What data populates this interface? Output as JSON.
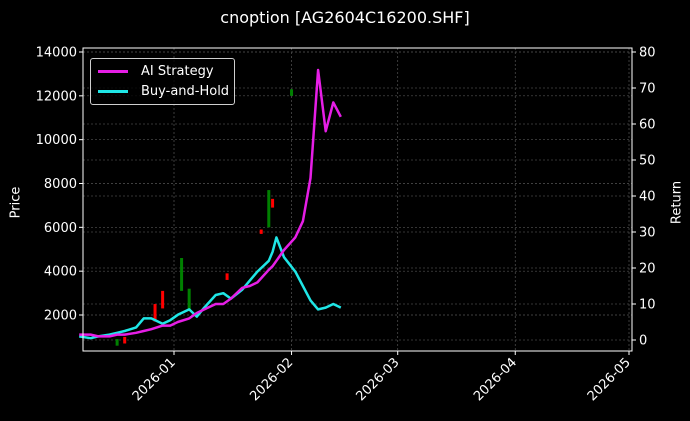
{
  "chart_data": {
    "type": "line",
    "title": "cnoption [AG2604C16200.SHF]",
    "xlabel": "",
    "ylabel_left": "Price",
    "ylabel_right": "Return",
    "x_ticks": [
      "2026-01",
      "2026-02",
      "2026-03",
      "2026-04",
      "2026-05"
    ],
    "y_left_ticks": [
      2000,
      4000,
      6000,
      8000,
      10000,
      12000,
      14000
    ],
    "y_right_ticks": [
      0,
      10,
      20,
      30,
      40,
      50,
      60,
      70,
      80
    ],
    "y_left_range": [
      350,
      14000
    ],
    "y_right_range": [
      -2,
      80
    ],
    "grid": true,
    "legend_position": "upper left",
    "legend": [
      "AI Strategy",
      "Buy-and-Hold"
    ],
    "colors": {
      "ai_strategy": "#ff00ff",
      "buy_and_hold": "#00ffff",
      "candle_up": "#008000",
      "candle_down": "#ff0000",
      "background": "#000000"
    },
    "series": [
      {
        "name": "AI Strategy",
        "axis": "right",
        "x": [
          "2025-12-07",
          "2025-12-10",
          "2025-12-12",
          "2025-12-15",
          "2025-12-17",
          "2025-12-19",
          "2025-12-22",
          "2025-12-24",
          "2025-12-26",
          "2025-12-29",
          "2025-12-31",
          "2026-01-02",
          "2026-01-05",
          "2026-01-07",
          "2026-01-09",
          "2026-01-12",
          "2026-01-14",
          "2026-01-16",
          "2026-01-19",
          "2026-01-21",
          "2026-01-23",
          "2026-01-26",
          "2026-01-27",
          "2026-01-28",
          "2026-01-30",
          "2026-02-02",
          "2026-02-04",
          "2026-02-06",
          "2026-02-08",
          "2026-02-10",
          "2026-02-12",
          "2026-02-14"
        ],
        "values": [
          1.5,
          1.5,
          1.0,
          1.0,
          1.5,
          1.5,
          2.0,
          2.5,
          3.0,
          4.0,
          4.0,
          5.0,
          6.0,
          7.5,
          8.5,
          10.0,
          10.0,
          11.5,
          14.5,
          15.0,
          16.0,
          19.5,
          20.5,
          22.0,
          25.0,
          28.5,
          33.0,
          45.0,
          75.0,
          58.0,
          66.0,
          62.0
        ]
      },
      {
        "name": "Buy-and-Hold",
        "axis": "right",
        "x": [
          "2025-12-07",
          "2025-12-10",
          "2025-12-12",
          "2025-12-15",
          "2025-12-17",
          "2025-12-19",
          "2025-12-22",
          "2025-12-24",
          "2025-12-26",
          "2025-12-29",
          "2025-12-31",
          "2026-01-02",
          "2026-01-05",
          "2026-01-07",
          "2026-01-09",
          "2026-01-12",
          "2026-01-14",
          "2026-01-16",
          "2026-01-19",
          "2026-01-21",
          "2026-01-23",
          "2026-01-26",
          "2026-01-27",
          "2026-01-28",
          "2026-01-30",
          "2026-02-02",
          "2026-02-04",
          "2026-02-06",
          "2026-02-08",
          "2026-02-10",
          "2026-02-12",
          "2026-02-14"
        ],
        "values": [
          1.0,
          0.5,
          1.0,
          1.5,
          2.0,
          2.5,
          3.5,
          6.0,
          6.0,
          4.5,
          5.5,
          7.0,
          8.5,
          6.5,
          9.0,
          12.5,
          13.0,
          11.5,
          14.0,
          16.5,
          19.0,
          22.0,
          24.5,
          28.5,
          23.0,
          19.0,
          15.0,
          11.0,
          8.5,
          9.0,
          10.0,
          9.0
        ]
      }
    ],
    "candles_note": "Sparse OHLC candlesticks on left Price axis (green up, red down) scattered 2025-12 to 2026-02; notable green candle near 7700 mid-January and near 12200 late January."
  }
}
